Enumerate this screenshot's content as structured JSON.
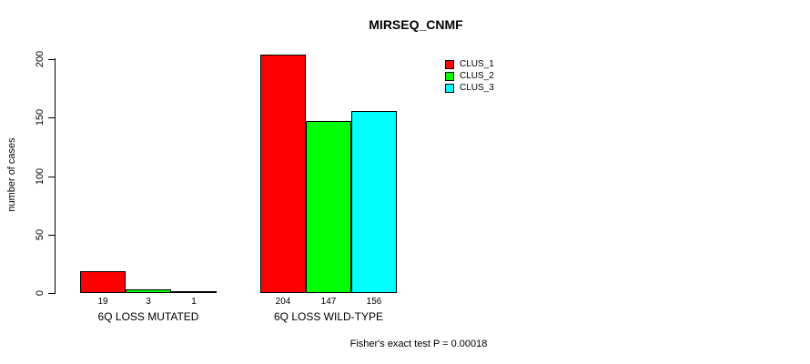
{
  "title": "MIRSEQ_CNMF",
  "annotation": "Fisher's exact test P = 0.00018",
  "chart_data": {
    "type": "bar",
    "title": "MIRSEQ_CNMF",
    "categories": [
      "6Q LOSS MUTATED",
      "6Q LOSS WILD-TYPE"
    ],
    "series": [
      {
        "name": "CLUS_1",
        "color": "#ff0000",
        "values": [
          19,
          204
        ]
      },
      {
        "name": "CLUS_2",
        "color": "#00ff00",
        "values": [
          3,
          147
        ]
      },
      {
        "name": "CLUS_3",
        "color": "#00ffff",
        "values": [
          1,
          156
        ]
      }
    ],
    "xlabel": "",
    "ylabel": "number of cases",
    "yticks": [
      0,
      50,
      100,
      150,
      200
    ],
    "ylim": [
      0,
      210
    ],
    "grid": false,
    "legend_position": "top-right",
    "bar_value_labels_shown": true,
    "annotation": "Fisher's exact test P = 0.00018"
  }
}
